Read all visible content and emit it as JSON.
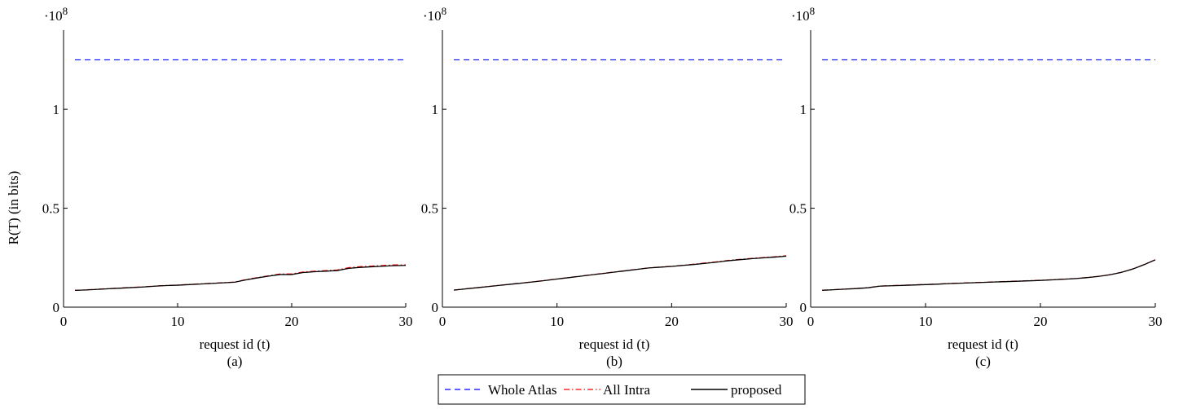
{
  "colors": {
    "whole_atlas": "#0000ff",
    "all_intra": "#ff0000",
    "proposed": "#000000",
    "axis": "#000000"
  },
  "shared": {
    "ylabel": "R(T)  (in bits)",
    "xlabel": "request id (t)",
    "exponent_base": "·10",
    "exponent_power": "8",
    "legend": [
      {
        "label": "Whole Atlas",
        "style": "dashed",
        "color": "#0000ff"
      },
      {
        "label": "All Intra",
        "style": "dash-dot",
        "color": "#ff0000"
      },
      {
        "label": "proposed",
        "style": "solid",
        "color": "#000000"
      }
    ]
  },
  "chart_data": [
    {
      "type": "line",
      "caption": "(a)",
      "xlabel": "request id (t)",
      "ylabel": "R(T)  (in bits)",
      "xlim": [
        0,
        30
      ],
      "ylim": [
        0,
        1.4
      ],
      "y_scale_note": "·10^8",
      "xticks": [
        0,
        10,
        20,
        30
      ],
      "yticks": [
        0,
        0.5,
        1
      ],
      "ytick_labels": [
        "0",
        "0.5",
        "1"
      ],
      "grid": false,
      "series": [
        {
          "name": "Whole Atlas",
          "x": [
            1,
            30
          ],
          "y": [
            1.25,
            1.25
          ]
        },
        {
          "name": "All Intra",
          "x": [
            1,
            2,
            3,
            4,
            5,
            6,
            7,
            8,
            9,
            10,
            11,
            12,
            13,
            14,
            15,
            16,
            17,
            18,
            19,
            20,
            21,
            22,
            23,
            24,
            25,
            26,
            27,
            28,
            29,
            30
          ],
          "y": [
            0.085,
            0.088,
            0.091,
            0.094,
            0.097,
            0.1,
            0.103,
            0.107,
            0.11,
            0.112,
            0.115,
            0.118,
            0.121,
            0.124,
            0.127,
            0.14,
            0.15,
            0.159,
            0.168,
            0.168,
            0.178,
            0.182,
            0.185,
            0.188,
            0.2,
            0.205,
            0.208,
            0.211,
            0.214,
            0.214
          ]
        },
        {
          "name": "proposed",
          "x": [
            1,
            2,
            3,
            4,
            5,
            6,
            7,
            8,
            9,
            10,
            11,
            12,
            13,
            14,
            15,
            16,
            17,
            18,
            19,
            20,
            21,
            22,
            23,
            24,
            25,
            26,
            27,
            28,
            29,
            30
          ],
          "y": [
            0.085,
            0.087,
            0.09,
            0.093,
            0.096,
            0.099,
            0.102,
            0.106,
            0.109,
            0.111,
            0.114,
            0.117,
            0.12,
            0.123,
            0.126,
            0.138,
            0.148,
            0.157,
            0.165,
            0.165,
            0.175,
            0.179,
            0.182,
            0.185,
            0.196,
            0.201,
            0.204,
            0.207,
            0.21,
            0.211
          ]
        }
      ]
    },
    {
      "type": "line",
      "caption": "(b)",
      "xlabel": "request id (t)",
      "ylabel": "",
      "xlim": [
        0,
        30
      ],
      "ylim": [
        0,
        1.4
      ],
      "y_scale_note": "·10^8",
      "xticks": [
        0,
        10,
        20,
        30
      ],
      "yticks": [
        0,
        0.5,
        1
      ],
      "ytick_labels": [
        "0",
        "0.5",
        "1"
      ],
      "grid": false,
      "series": [
        {
          "name": "Whole Atlas",
          "x": [
            1,
            30
          ],
          "y": [
            1.25,
            1.25
          ]
        },
        {
          "name": "All Intra",
          "x": [
            1,
            2,
            3,
            4,
            5,
            6,
            7,
            8,
            9,
            10,
            11,
            12,
            13,
            14,
            15,
            16,
            17,
            18,
            19,
            20,
            21,
            22,
            23,
            24,
            25,
            26,
            27,
            28,
            29,
            30
          ],
          "y": [
            0.087,
            0.093,
            0.099,
            0.105,
            0.111,
            0.117,
            0.123,
            0.129,
            0.136,
            0.143,
            0.15,
            0.157,
            0.164,
            0.171,
            0.178,
            0.185,
            0.192,
            0.199,
            0.203,
            0.207,
            0.212,
            0.218,
            0.224,
            0.23,
            0.237,
            0.242,
            0.247,
            0.251,
            0.255,
            0.26
          ]
        },
        {
          "name": "proposed",
          "x": [
            1,
            2,
            3,
            4,
            5,
            6,
            7,
            8,
            9,
            10,
            11,
            12,
            13,
            14,
            15,
            16,
            17,
            18,
            19,
            20,
            21,
            22,
            23,
            24,
            25,
            26,
            27,
            28,
            29,
            30
          ],
          "y": [
            0.086,
            0.092,
            0.098,
            0.104,
            0.11,
            0.116,
            0.122,
            0.128,
            0.135,
            0.142,
            0.149,
            0.156,
            0.163,
            0.17,
            0.177,
            0.184,
            0.191,
            0.198,
            0.202,
            0.206,
            0.211,
            0.216,
            0.222,
            0.228,
            0.235,
            0.24,
            0.245,
            0.249,
            0.253,
            0.258
          ]
        }
      ]
    },
    {
      "type": "line",
      "caption": "(c)",
      "xlabel": "request id (t)",
      "ylabel": "",
      "xlim": [
        0,
        30
      ],
      "ylim": [
        0,
        1.4
      ],
      "y_scale_note": "·10^8",
      "xticks": [
        0,
        10,
        20,
        30
      ],
      "yticks": [
        0,
        0.5,
        1
      ],
      "ytick_labels": [
        "0",
        "0.5",
        "1"
      ],
      "grid": false,
      "series": [
        {
          "name": "Whole Atlas",
          "x": [
            1,
            30
          ],
          "y": [
            1.25,
            1.25
          ]
        },
        {
          "name": "All Intra",
          "x": [
            1,
            2,
            3,
            4,
            5,
            6,
            7,
            8,
            9,
            10,
            11,
            12,
            13,
            14,
            15,
            16,
            17,
            18,
            19,
            20,
            21,
            22,
            23,
            24,
            25,
            26,
            27,
            28,
            29,
            30
          ],
          "y": [
            0.086,
            0.089,
            0.092,
            0.095,
            0.099,
            0.107,
            0.109,
            0.111,
            0.113,
            0.115,
            0.117,
            0.12,
            0.122,
            0.124,
            0.126,
            0.128,
            0.13,
            0.132,
            0.134,
            0.136,
            0.139,
            0.142,
            0.145,
            0.15,
            0.156,
            0.164,
            0.176,
            0.193,
            0.215,
            0.24
          ]
        },
        {
          "name": "proposed",
          "x": [
            1,
            2,
            3,
            4,
            5,
            6,
            7,
            8,
            9,
            10,
            11,
            12,
            13,
            14,
            15,
            16,
            17,
            18,
            19,
            20,
            21,
            22,
            23,
            24,
            25,
            26,
            27,
            28,
            29,
            30
          ],
          "y": [
            0.085,
            0.088,
            0.091,
            0.094,
            0.098,
            0.106,
            0.108,
            0.11,
            0.112,
            0.114,
            0.116,
            0.119,
            0.121,
            0.123,
            0.125,
            0.127,
            0.129,
            0.131,
            0.133,
            0.135,
            0.138,
            0.141,
            0.144,
            0.149,
            0.155,
            0.163,
            0.175,
            0.192,
            0.214,
            0.239
          ]
        }
      ]
    }
  ]
}
